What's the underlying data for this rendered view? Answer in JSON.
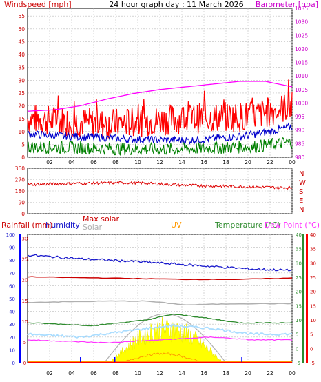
{
  "header": {
    "title": "24 hour graph day : 11 March 2026",
    "wind_label": "Windspeed [mph]",
    "baro_label": "Barometer [hpa]"
  },
  "panel_labels": {
    "rain": "Rainfall (mm)",
    "humidity": "Humidity",
    "max_solar": "Max solar",
    "solar": "Solar",
    "uv": "UV",
    "temperature": "Temperature (°C)",
    "dewpoint": "Dew Point (°C)"
  },
  "colors": {
    "gust": "#ff0000",
    "wind": "#008000",
    "wind_avg": "#0000cc",
    "barometer": "#ff00ff",
    "direction": "#dd0000",
    "humidity": "#1a1acc",
    "max_solar": "#cc0000",
    "solar": "#b0b0b0",
    "uv": "#ff9900",
    "temperature": "#2e8b2e",
    "dewpoint": "#ff33ff",
    "rain": "#0000ff",
    "solar_fill": "#ffff00",
    "apparent": "#aaddff"
  },
  "chart_data": [
    {
      "type": "line",
      "x_ticks": [
        "02",
        "04",
        "06",
        "08",
        "10",
        "12",
        "14",
        "16",
        "18",
        "20",
        "22",
        "00"
      ],
      "y_left_ticks": [
        "0",
        "5",
        "10",
        "15",
        "20",
        "25",
        "30",
        "35",
        "40",
        "45",
        "50",
        "55"
      ],
      "y_right_ticks": [
        "980",
        "985",
        "990",
        "995",
        "1000",
        "1005",
        "1010",
        "1015",
        "1020",
        "1025",
        "1030",
        "1035"
      ],
      "ylim_left": [
        0,
        58
      ],
      "ylim_right": [
        980,
        1035
      ],
      "series": [
        {
          "key": "gust",
          "axis": "left",
          "base": 16,
          "amp": 6,
          "trend": [
            [
              0,
              15
            ],
            [
              0.3,
              13
            ],
            [
              0.6,
              15
            ],
            [
              0.85,
              16
            ],
            [
              1,
              20
            ]
          ]
        },
        {
          "key": "wind_avg",
          "axis": "left",
          "trend": [
            [
              0,
              9
            ],
            [
              0.2,
              8
            ],
            [
              0.4,
              7
            ],
            [
              0.6,
              6.5
            ],
            [
              0.8,
              8
            ],
            [
              0.92,
              10
            ],
            [
              1,
              12
            ]
          ],
          "amp": 1.5
        },
        {
          "key": "wind",
          "axis": "left",
          "trend": [
            [
              0,
              4
            ],
            [
              0.5,
              3
            ],
            [
              0.85,
              4
            ],
            [
              1,
              6
            ]
          ],
          "amp": 2.5
        },
        {
          "key": "barometer",
          "axis": "right",
          "points": [
            [
              0,
              997
            ],
            [
              0.1,
              997.5
            ],
            [
              0.2,
              999
            ],
            [
              0.3,
              1001.5
            ],
            [
              0.4,
              1003.5
            ],
            [
              0.5,
              1005
            ],
            [
              0.6,
              1006
            ],
            [
              0.7,
              1007
            ],
            [
              0.8,
              1008
            ],
            [
              0.9,
              1008
            ],
            [
              1,
              1006
            ]
          ]
        }
      ]
    },
    {
      "type": "line",
      "y_ticks": [
        "0",
        "90",
        "180",
        "270",
        "360"
      ],
      "ylim": [
        0,
        360
      ],
      "compass": [
        "N",
        "W",
        "S",
        "E",
        "N"
      ],
      "series": [
        {
          "key": "direction",
          "points": [
            [
              0,
              230
            ],
            [
              0.2,
              240
            ],
            [
              0.4,
              245
            ],
            [
              0.6,
              225
            ],
            [
              0.8,
              215
            ],
            [
              1,
              205
            ]
          ]
        }
      ]
    },
    {
      "type": "line",
      "x_ticks": [
        "02",
        "04",
        "06",
        "08",
        "10",
        "12",
        "14",
        "16",
        "18",
        "20",
        "22",
        "00"
      ],
      "humidity_ticks": [
        "0",
        "10",
        "20",
        "30",
        "40",
        "50",
        "60",
        "70",
        "80",
        "90",
        "100"
      ],
      "rain_ticks": [
        "0",
        "5",
        "10",
        "15",
        "20",
        "25",
        "30"
      ],
      "temp_ticks": [
        "-5",
        "0",
        "5",
        "10",
        "15",
        "20",
        "25",
        "30",
        "35",
        "40"
      ],
      "temp_range": [
        -5,
        40
      ],
      "series": [
        {
          "key": "humidity",
          "axis": "humidity",
          "points": [
            [
              0,
              84
            ],
            [
              0.2,
              81
            ],
            [
              0.4,
              79
            ],
            [
              0.55,
              77
            ],
            [
              0.7,
              75
            ],
            [
              0.85,
              73
            ],
            [
              1,
              72
            ]
          ]
        },
        {
          "key": "max_solar",
          "axis": "humidity",
          "points": [
            [
              0,
              67
            ],
            [
              0.3,
              66
            ],
            [
              0.6,
              65
            ],
            [
              0.8,
              65
            ],
            [
              1,
              66
            ]
          ]
        },
        {
          "key": "solar_bg",
          "axis": "humidity",
          "points": [
            [
              0,
              47
            ],
            [
              0.3,
              48
            ],
            [
              0.45,
              48
            ],
            [
              0.6,
              45
            ],
            [
              0.8,
              46
            ],
            [
              1,
              46
            ]
          ]
        },
        {
          "key": "temperature",
          "axis": "temp",
          "points": [
            [
              0,
              9
            ],
            [
              0.25,
              8
            ],
            [
              0.45,
              10
            ],
            [
              0.55,
              12
            ],
            [
              0.65,
              11
            ],
            [
              0.8,
              9
            ],
            [
              1,
              9
            ]
          ]
        },
        {
          "key": "apparent",
          "axis": "temp",
          "points": [
            [
              0,
              5
            ],
            [
              0.2,
              4
            ],
            [
              0.45,
              7
            ],
            [
              0.55,
              8
            ],
            [
              0.7,
              7
            ],
            [
              0.85,
              5
            ],
            [
              1,
              5
            ]
          ]
        },
        {
          "key": "dewpoint",
          "axis": "temp",
          "points": [
            [
              0,
              3
            ],
            [
              0.3,
              2
            ],
            [
              0.5,
              3
            ],
            [
              0.7,
              4
            ],
            [
              0.85,
              3
            ],
            [
              1,
              3
            ]
          ]
        }
      ],
      "solar_peak_pct": 36,
      "rain_marks_x": [
        0.2,
        0.33,
        0.81
      ]
    }
  ]
}
